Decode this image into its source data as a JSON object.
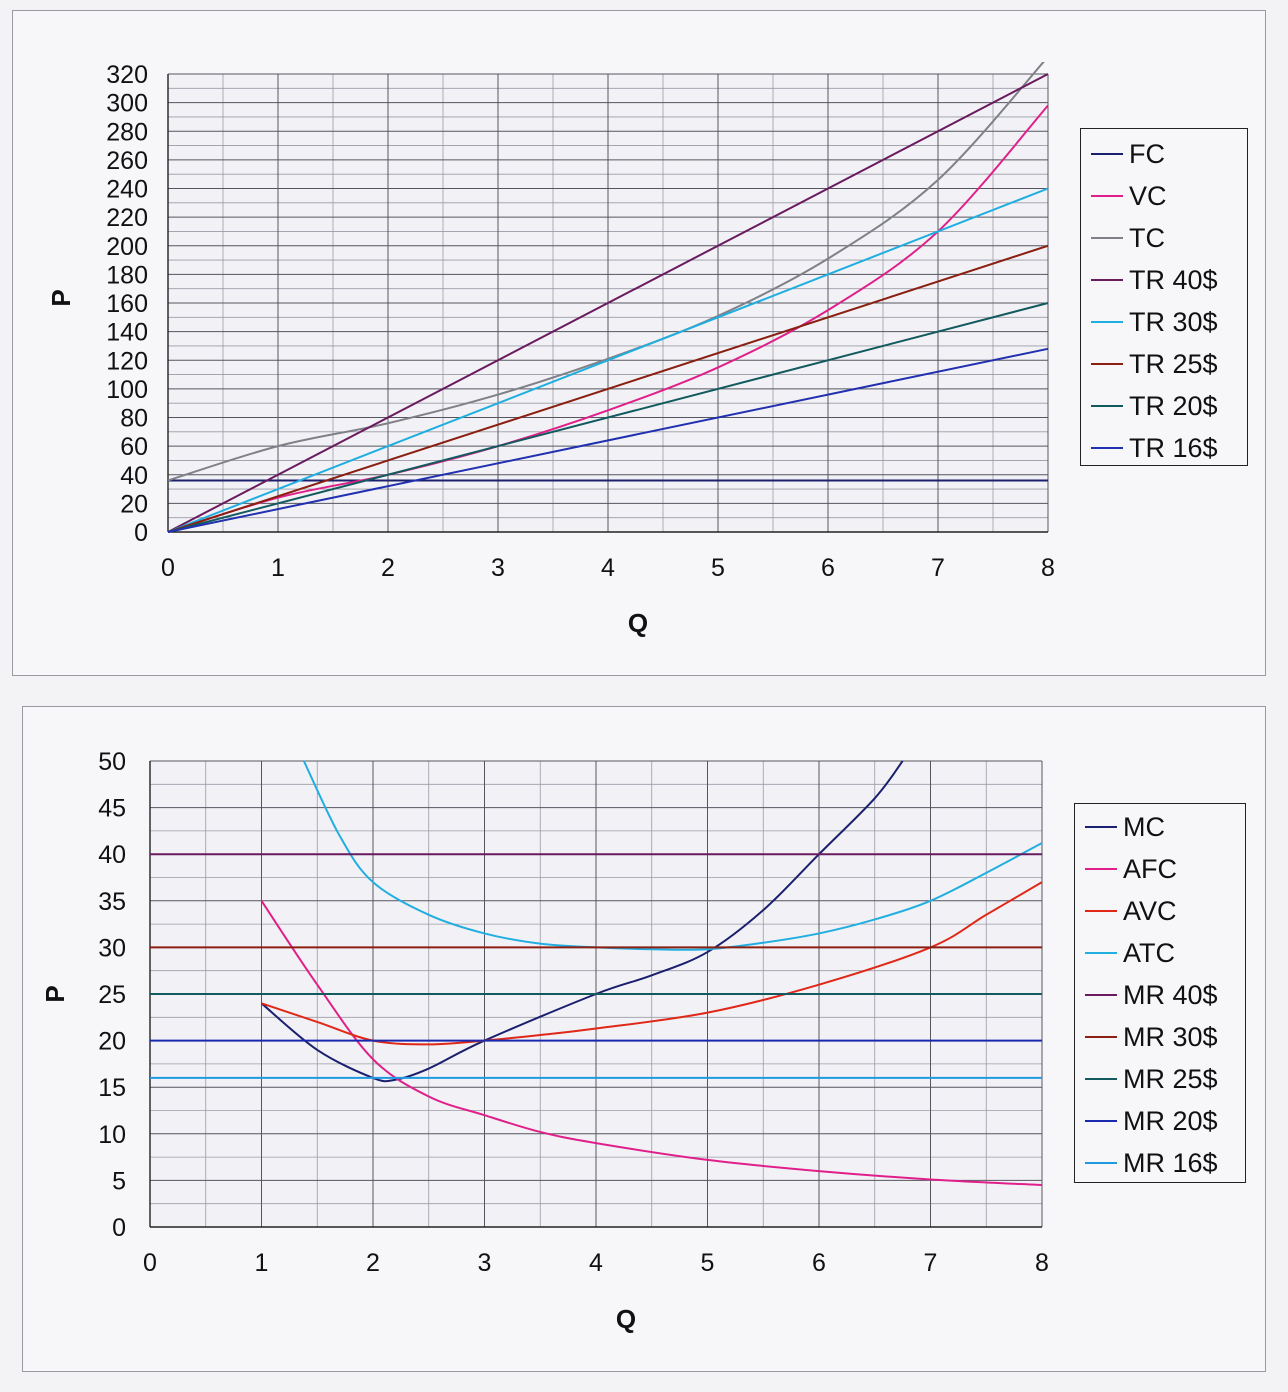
{
  "chart_data": [
    {
      "type": "line",
      "xlabel": "Q",
      "ylabel": "P",
      "xlim": [
        0,
        8
      ],
      "ylim": [
        0,
        320
      ],
      "xticks": [
        0,
        1,
        2,
        3,
        4,
        5,
        6,
        7,
        8
      ],
      "yticks": [
        0,
        20,
        40,
        60,
        80,
        100,
        120,
        140,
        160,
        180,
        200,
        220,
        240,
        260,
        280,
        300,
        320
      ],
      "grid": true,
      "legend_position": "right",
      "series": [
        {
          "name": "FC",
          "color": "#1a1f6e",
          "x": [
            0,
            8
          ],
          "y": [
            36,
            36
          ]
        },
        {
          "name": "VC",
          "color": "#e0208a",
          "x": [
            0,
            1,
            2,
            3,
            4,
            5,
            6,
            7,
            8
          ],
          "y": [
            0,
            24,
            40,
            60,
            85,
            115,
            155,
            210,
            298
          ]
        },
        {
          "name": "TC",
          "color": "#808088",
          "x": [
            0,
            1,
            2,
            3,
            4,
            5,
            6,
            7,
            8
          ],
          "y": [
            36,
            60,
            76,
            96,
            121,
            151,
            191,
            246,
            332
          ]
        },
        {
          "name": "TR 40$",
          "color": "#6a1a5e",
          "x": [
            0,
            8
          ],
          "y": [
            0,
            320
          ]
        },
        {
          "name": "TR 30$",
          "color": "#1faee0",
          "x": [
            0,
            8
          ],
          "y": [
            0,
            240
          ]
        },
        {
          "name": "TR 25$",
          "color": "#8a1f12",
          "x": [
            0,
            8
          ],
          "y": [
            0,
            200
          ]
        },
        {
          "name": "TR 20$",
          "color": "#125a5e",
          "x": [
            0,
            8
          ],
          "y": [
            0,
            160
          ]
        },
        {
          "name": "TR 16$",
          "color": "#2030b0",
          "x": [
            0,
            8
          ],
          "y": [
            0,
            128
          ]
        }
      ]
    },
    {
      "type": "line",
      "xlabel": "Q",
      "ylabel": "P",
      "xlim": [
        0,
        8
      ],
      "ylim": [
        0,
        50
      ],
      "xticks": [
        0,
        1,
        2,
        3,
        4,
        5,
        6,
        7,
        8
      ],
      "yticks": [
        0,
        5,
        10,
        15,
        20,
        25,
        30,
        35,
        40,
        45,
        50
      ],
      "grid": true,
      "legend_position": "right",
      "series": [
        {
          "name": "MC",
          "color": "#1a1f6e",
          "x": [
            1,
            1.5,
            2,
            2.2,
            2.5,
            3,
            4,
            4.5,
            5,
            5.5,
            6,
            6.5,
            6.75
          ],
          "y": [
            24,
            19,
            16,
            15.8,
            17,
            20,
            25,
            27,
            29.5,
            34,
            40,
            46,
            50
          ]
        },
        {
          "name": "AFC",
          "color": "#e0208a",
          "x": [
            1,
            1.5,
            2,
            2.5,
            3,
            3.5,
            4,
            5,
            6,
            7,
            8
          ],
          "y": [
            35,
            26,
            18,
            14,
            12,
            10.2,
            9,
            7.2,
            6,
            5.1,
            4.5
          ]
        },
        {
          "name": "AVC",
          "color": "#e02818",
          "x": [
            1,
            1.5,
            2,
            2.5,
            3,
            3.5,
            4,
            5,
            6,
            7,
            7.5,
            8
          ],
          "y": [
            24,
            22,
            20,
            19.6,
            20,
            20.6,
            21.3,
            23,
            26,
            30,
            33.5,
            37
          ]
        },
        {
          "name": "ATC",
          "color": "#22aee0",
          "x": [
            1.38,
            1.7,
            2,
            2.5,
            3,
            3.5,
            4,
            4.5,
            5,
            5.5,
            6,
            6.5,
            7,
            7.5,
            8
          ],
          "y": [
            50,
            42,
            37,
            33.5,
            31.5,
            30.4,
            30,
            29.8,
            29.8,
            30.5,
            31.5,
            33,
            35,
            38,
            41.2
          ]
        },
        {
          "name": "MR 40$",
          "color": "#6a1a5e",
          "x": [
            0,
            8
          ],
          "y": [
            40,
            40
          ]
        },
        {
          "name": "MR 30$",
          "color": "#8a1f12",
          "x": [
            0,
            8
          ],
          "y": [
            30,
            30
          ]
        },
        {
          "name": "MR 25$",
          "color": "#125a5e",
          "x": [
            0,
            8
          ],
          "y": [
            25,
            25
          ]
        },
        {
          "name": "MR 20$",
          "color": "#1a28b0",
          "x": [
            0,
            8
          ],
          "y": [
            20,
            20
          ]
        },
        {
          "name": "MR 16$",
          "color": "#1f9ae0",
          "x": [
            0,
            8
          ],
          "y": [
            16,
            16
          ]
        }
      ]
    }
  ]
}
